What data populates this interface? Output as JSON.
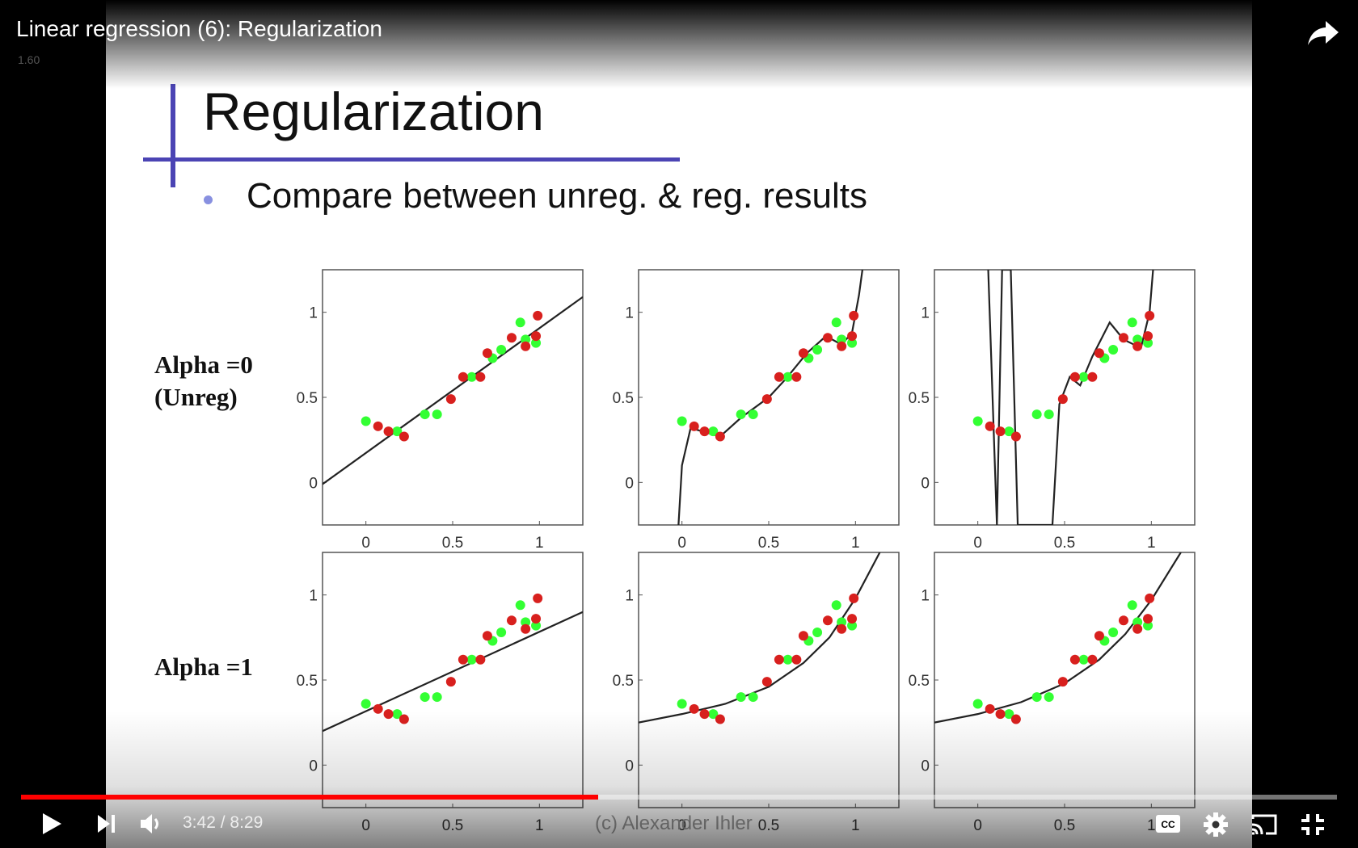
{
  "player": {
    "title": "Linear regression (6): Regularization",
    "speed": "1.60",
    "time_current": "3:42",
    "time_separator": " / ",
    "time_total": "8:29",
    "progress_fraction": 0.4385,
    "colors": {
      "progress": "#ff0000",
      "accent": "#4b44b4"
    }
  },
  "controls": {
    "play": "play-icon",
    "next": "skip-next-icon",
    "volume": "volume-icon",
    "captions": "closed-captions-icon",
    "settings": "gear-icon",
    "cast": "cast-icon",
    "fullscreen_exit": "exit-fullscreen-icon",
    "share": "share-arrow-icon"
  },
  "slide": {
    "title": "Regularization",
    "bullet": "Compare between unreg. & reg. results",
    "row_labels": [
      "Alpha =0",
      "(Unreg)",
      "Alpha =1"
    ],
    "watermark": "(c) Alexander Ihler"
  },
  "chart_data": [
    {
      "type": "scatter",
      "title": "",
      "row": "Alpha =0",
      "x_ticks": [
        "0",
        "0.5",
        "1"
      ],
      "y_ticks": [
        "0",
        "0.5",
        "1"
      ],
      "xlim": [
        -0.25,
        1.25
      ],
      "ylim": [
        -0.25,
        1.25
      ],
      "series": [
        {
          "color": "#33ff33",
          "x": [
            0.0,
            0.18,
            0.34,
            0.41,
            0.61,
            0.73,
            0.78,
            0.89,
            0.92,
            0.98
          ],
          "y": [
            0.36,
            0.3,
            0.4,
            0.4,
            0.62,
            0.73,
            0.78,
            0.94,
            0.84,
            0.82
          ]
        },
        {
          "color": "#d8201e",
          "x": [
            0.07,
            0.13,
            0.22,
            0.49,
            0.56,
            0.66,
            0.7,
            0.84,
            0.92,
            0.98,
            0.99
          ],
          "y": [
            0.33,
            0.3,
            0.27,
            0.49,
            0.62,
            0.62,
            0.76,
            0.85,
            0.8,
            0.86,
            0.98
          ]
        }
      ],
      "fit": [
        [
          -0.25,
          -0.01
        ],
        [
          1.25,
          1.09
        ]
      ]
    },
    {
      "type": "scatter",
      "row": "Alpha =0",
      "x_ticks": [
        "0",
        "0.5",
        "1"
      ],
      "y_ticks": [
        "0",
        "0.5",
        "1"
      ],
      "xlim": [
        -0.25,
        1.25
      ],
      "ylim": [
        -0.25,
        1.25
      ],
      "series": [
        {
          "color": "#33ff33",
          "x": [
            0.0,
            0.18,
            0.34,
            0.41,
            0.61,
            0.73,
            0.78,
            0.89,
            0.92,
            0.98
          ],
          "y": [
            0.36,
            0.3,
            0.4,
            0.4,
            0.62,
            0.73,
            0.78,
            0.94,
            0.84,
            0.82
          ]
        },
        {
          "color": "#d8201e",
          "x": [
            0.07,
            0.13,
            0.22,
            0.49,
            0.56,
            0.66,
            0.7,
            0.84,
            0.92,
            0.98,
            0.99
          ],
          "y": [
            0.33,
            0.3,
            0.27,
            0.49,
            0.62,
            0.62,
            0.76,
            0.85,
            0.8,
            0.86,
            0.98
          ]
        }
      ],
      "fit": [
        [
          -0.02,
          -0.25
        ],
        [
          0.0,
          0.1
        ],
        [
          0.05,
          0.32
        ],
        [
          0.15,
          0.29
        ],
        [
          0.22,
          0.27
        ],
        [
          0.34,
          0.38
        ],
        [
          0.5,
          0.5
        ],
        [
          0.6,
          0.61
        ],
        [
          0.72,
          0.76
        ],
        [
          0.83,
          0.86
        ],
        [
          0.92,
          0.81
        ],
        [
          0.98,
          0.88
        ],
        [
          1.02,
          1.1
        ],
        [
          1.04,
          1.25
        ]
      ]
    },
    {
      "type": "scatter",
      "row": "Alpha =0",
      "x_ticks": [
        "0",
        "0.5",
        "1"
      ],
      "y_ticks": [
        "0",
        "0.5",
        "1"
      ],
      "xlim": [
        -0.25,
        1.25
      ],
      "ylim": [
        -0.25,
        1.25
      ],
      "series": [
        {
          "color": "#33ff33",
          "x": [
            0.0,
            0.18,
            0.34,
            0.41,
            0.61,
            0.73,
            0.78,
            0.89,
            0.92,
            0.98
          ],
          "y": [
            0.36,
            0.3,
            0.4,
            0.4,
            0.62,
            0.73,
            0.78,
            0.94,
            0.84,
            0.82
          ]
        },
        {
          "color": "#d8201e",
          "x": [
            0.07,
            0.13,
            0.22,
            0.49,
            0.56,
            0.66,
            0.7,
            0.84,
            0.92,
            0.98,
            0.99
          ],
          "y": [
            0.33,
            0.3,
            0.27,
            0.49,
            0.62,
            0.62,
            0.76,
            0.85,
            0.8,
            0.86,
            0.98
          ]
        }
      ],
      "fit": [
        [
          0.06,
          1.25
        ],
        [
          0.11,
          -0.25
        ],
        [
          0.14,
          1.25
        ],
        [
          0.19,
          1.25
        ],
        [
          0.23,
          -0.25
        ],
        [
          0.43,
          -0.25
        ],
        [
          0.47,
          0.46
        ],
        [
          0.53,
          0.62
        ],
        [
          0.59,
          0.57
        ],
        [
          0.66,
          0.74
        ],
        [
          0.76,
          0.94
        ],
        [
          0.84,
          0.84
        ],
        [
          0.94,
          0.79
        ],
        [
          0.99,
          1.0
        ],
        [
          1.01,
          1.25
        ]
      ]
    },
    {
      "type": "scatter",
      "row": "Alpha =1",
      "x_ticks": [
        "0",
        "0.5",
        "1"
      ],
      "y_ticks": [
        "0",
        "0.5",
        "1"
      ],
      "xlim": [
        -0.25,
        1.25
      ],
      "ylim": [
        -0.25,
        1.25
      ],
      "series": [
        {
          "color": "#33ff33",
          "x": [
            0.0,
            0.18,
            0.34,
            0.41,
            0.61,
            0.73,
            0.78,
            0.89,
            0.92,
            0.98
          ],
          "y": [
            0.36,
            0.3,
            0.4,
            0.4,
            0.62,
            0.73,
            0.78,
            0.94,
            0.84,
            0.82
          ]
        },
        {
          "color": "#d8201e",
          "x": [
            0.07,
            0.13,
            0.22,
            0.49,
            0.56,
            0.66,
            0.7,
            0.84,
            0.92,
            0.98,
            0.99
          ],
          "y": [
            0.33,
            0.3,
            0.27,
            0.49,
            0.62,
            0.62,
            0.76,
            0.85,
            0.8,
            0.86,
            0.98
          ]
        }
      ],
      "fit": [
        [
          -0.25,
          0.2
        ],
        [
          1.25,
          0.9
        ]
      ]
    },
    {
      "type": "scatter",
      "row": "Alpha =1",
      "x_ticks": [
        "0",
        "0.5",
        "1"
      ],
      "y_ticks": [
        "0",
        "0.5",
        "1"
      ],
      "xlim": [
        -0.25,
        1.25
      ],
      "ylim": [
        -0.25,
        1.25
      ],
      "series": [
        {
          "color": "#33ff33",
          "x": [
            0.0,
            0.18,
            0.34,
            0.41,
            0.61,
            0.73,
            0.78,
            0.89,
            0.92,
            0.98
          ],
          "y": [
            0.36,
            0.3,
            0.4,
            0.4,
            0.62,
            0.73,
            0.78,
            0.94,
            0.84,
            0.82
          ]
        },
        {
          "color": "#d8201e",
          "x": [
            0.07,
            0.13,
            0.22,
            0.49,
            0.56,
            0.66,
            0.7,
            0.84,
            0.92,
            0.98,
            0.99
          ],
          "y": [
            0.33,
            0.3,
            0.27,
            0.49,
            0.62,
            0.62,
            0.76,
            0.85,
            0.8,
            0.86,
            0.98
          ]
        }
      ],
      "fit": [
        [
          -0.25,
          0.25
        ],
        [
          0.0,
          0.3
        ],
        [
          0.25,
          0.36
        ],
        [
          0.5,
          0.46
        ],
        [
          0.7,
          0.6
        ],
        [
          0.85,
          0.75
        ],
        [
          1.0,
          0.98
        ],
        [
          1.14,
          1.25
        ]
      ]
    },
    {
      "type": "scatter",
      "row": "Alpha =1",
      "x_ticks": [
        "0",
        "0.5",
        "1"
      ],
      "y_ticks": [
        "0",
        "0.5",
        "1"
      ],
      "xlim": [
        -0.25,
        1.25
      ],
      "ylim": [
        -0.25,
        1.25
      ],
      "series": [
        {
          "color": "#33ff33",
          "x": [
            0.0,
            0.18,
            0.34,
            0.41,
            0.61,
            0.73,
            0.78,
            0.89,
            0.92,
            0.98
          ],
          "y": [
            0.36,
            0.3,
            0.4,
            0.4,
            0.62,
            0.73,
            0.78,
            0.94,
            0.84,
            0.82
          ]
        },
        {
          "color": "#d8201e",
          "x": [
            0.07,
            0.13,
            0.22,
            0.49,
            0.56,
            0.66,
            0.7,
            0.84,
            0.92,
            0.98,
            0.99
          ],
          "y": [
            0.33,
            0.3,
            0.27,
            0.49,
            0.62,
            0.62,
            0.76,
            0.85,
            0.8,
            0.86,
            0.98
          ]
        }
      ],
      "fit": [
        [
          -0.25,
          0.25
        ],
        [
          0.0,
          0.3
        ],
        [
          0.25,
          0.37
        ],
        [
          0.5,
          0.48
        ],
        [
          0.7,
          0.62
        ],
        [
          0.85,
          0.77
        ],
        [
          1.0,
          0.97
        ],
        [
          1.17,
          1.25
        ]
      ]
    }
  ]
}
